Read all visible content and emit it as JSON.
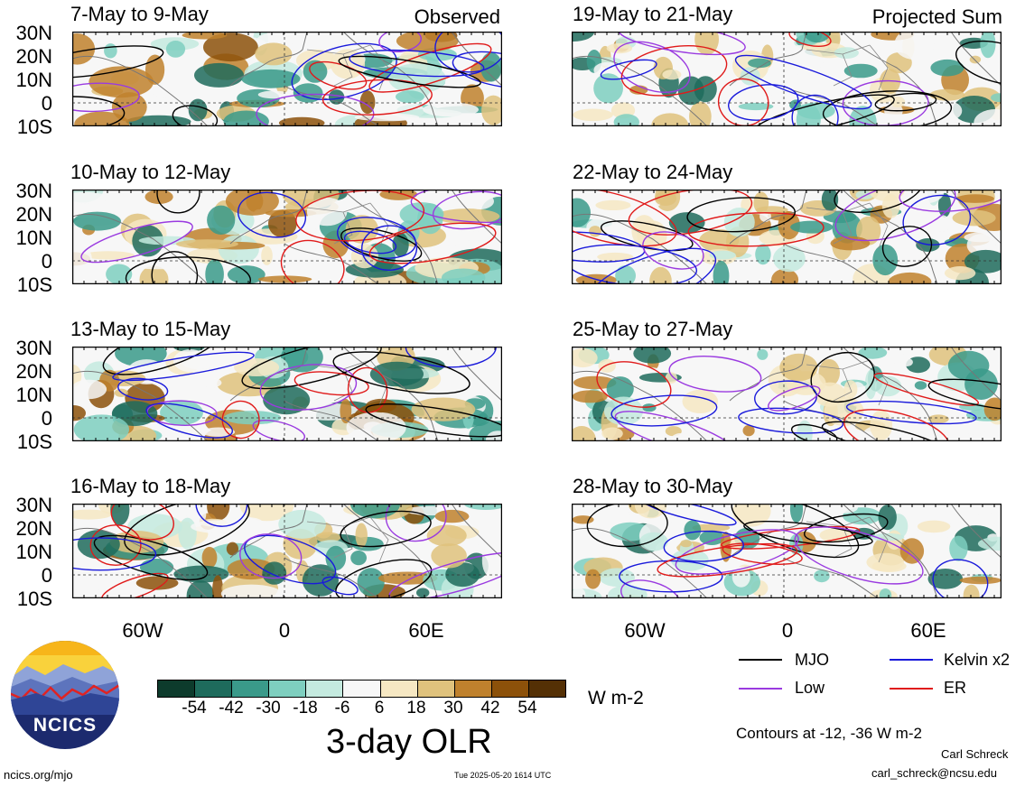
{
  "panels": [
    {
      "title": "7-May to 9-May",
      "tag": "Observed"
    },
    {
      "title": "10-May to 12-May",
      "tag": ""
    },
    {
      "title": "13-May to 15-May",
      "tag": ""
    },
    {
      "title": "16-May to 18-May",
      "tag": ""
    },
    {
      "title": "19-May to 21-May",
      "tag": "Projected Sum"
    },
    {
      "title": "22-May to 24-May",
      "tag": ""
    },
    {
      "title": "25-May to 27-May",
      "tag": ""
    },
    {
      "title": "28-May to 30-May",
      "tag": ""
    }
  ],
  "lat_labels": [
    "30N",
    "20N",
    "10N",
    "0",
    "10S"
  ],
  "lon_labels": [
    "60W",
    "0",
    "60E"
  ],
  "colorbar": {
    "colors": [
      "#0d3b2c",
      "#1e6b5c",
      "#3a9a8a",
      "#7ecfbf",
      "#c4eadf",
      "#f7f7f7",
      "#f6e8c3",
      "#dfc27d",
      "#bf812d",
      "#8c510a",
      "#543005"
    ],
    "labels": [
      "-54",
      "-42",
      "-30",
      "-18",
      "-6",
      "6",
      "18",
      "30",
      "42",
      "54"
    ],
    "units": "W m-2",
    "title": "3-day OLR"
  },
  "legend": [
    {
      "name": "MJO",
      "color": "#000000"
    },
    {
      "name": "Kelvin x2",
      "color": "#1a1adb"
    },
    {
      "name": "Low",
      "color": "#9a3ae0"
    },
    {
      "name": "ER",
      "color": "#e01a1a"
    }
  ],
  "contours_note": "Contours at -12, -36 W m-2",
  "logo_text": "NCICS",
  "footer": {
    "left": "ncics.org/mjo",
    "center": "Tue 2025-05-20 1614 UTC",
    "author": "Carl Schreck",
    "email": "carl_schreck@ncsu.edu"
  }
}
